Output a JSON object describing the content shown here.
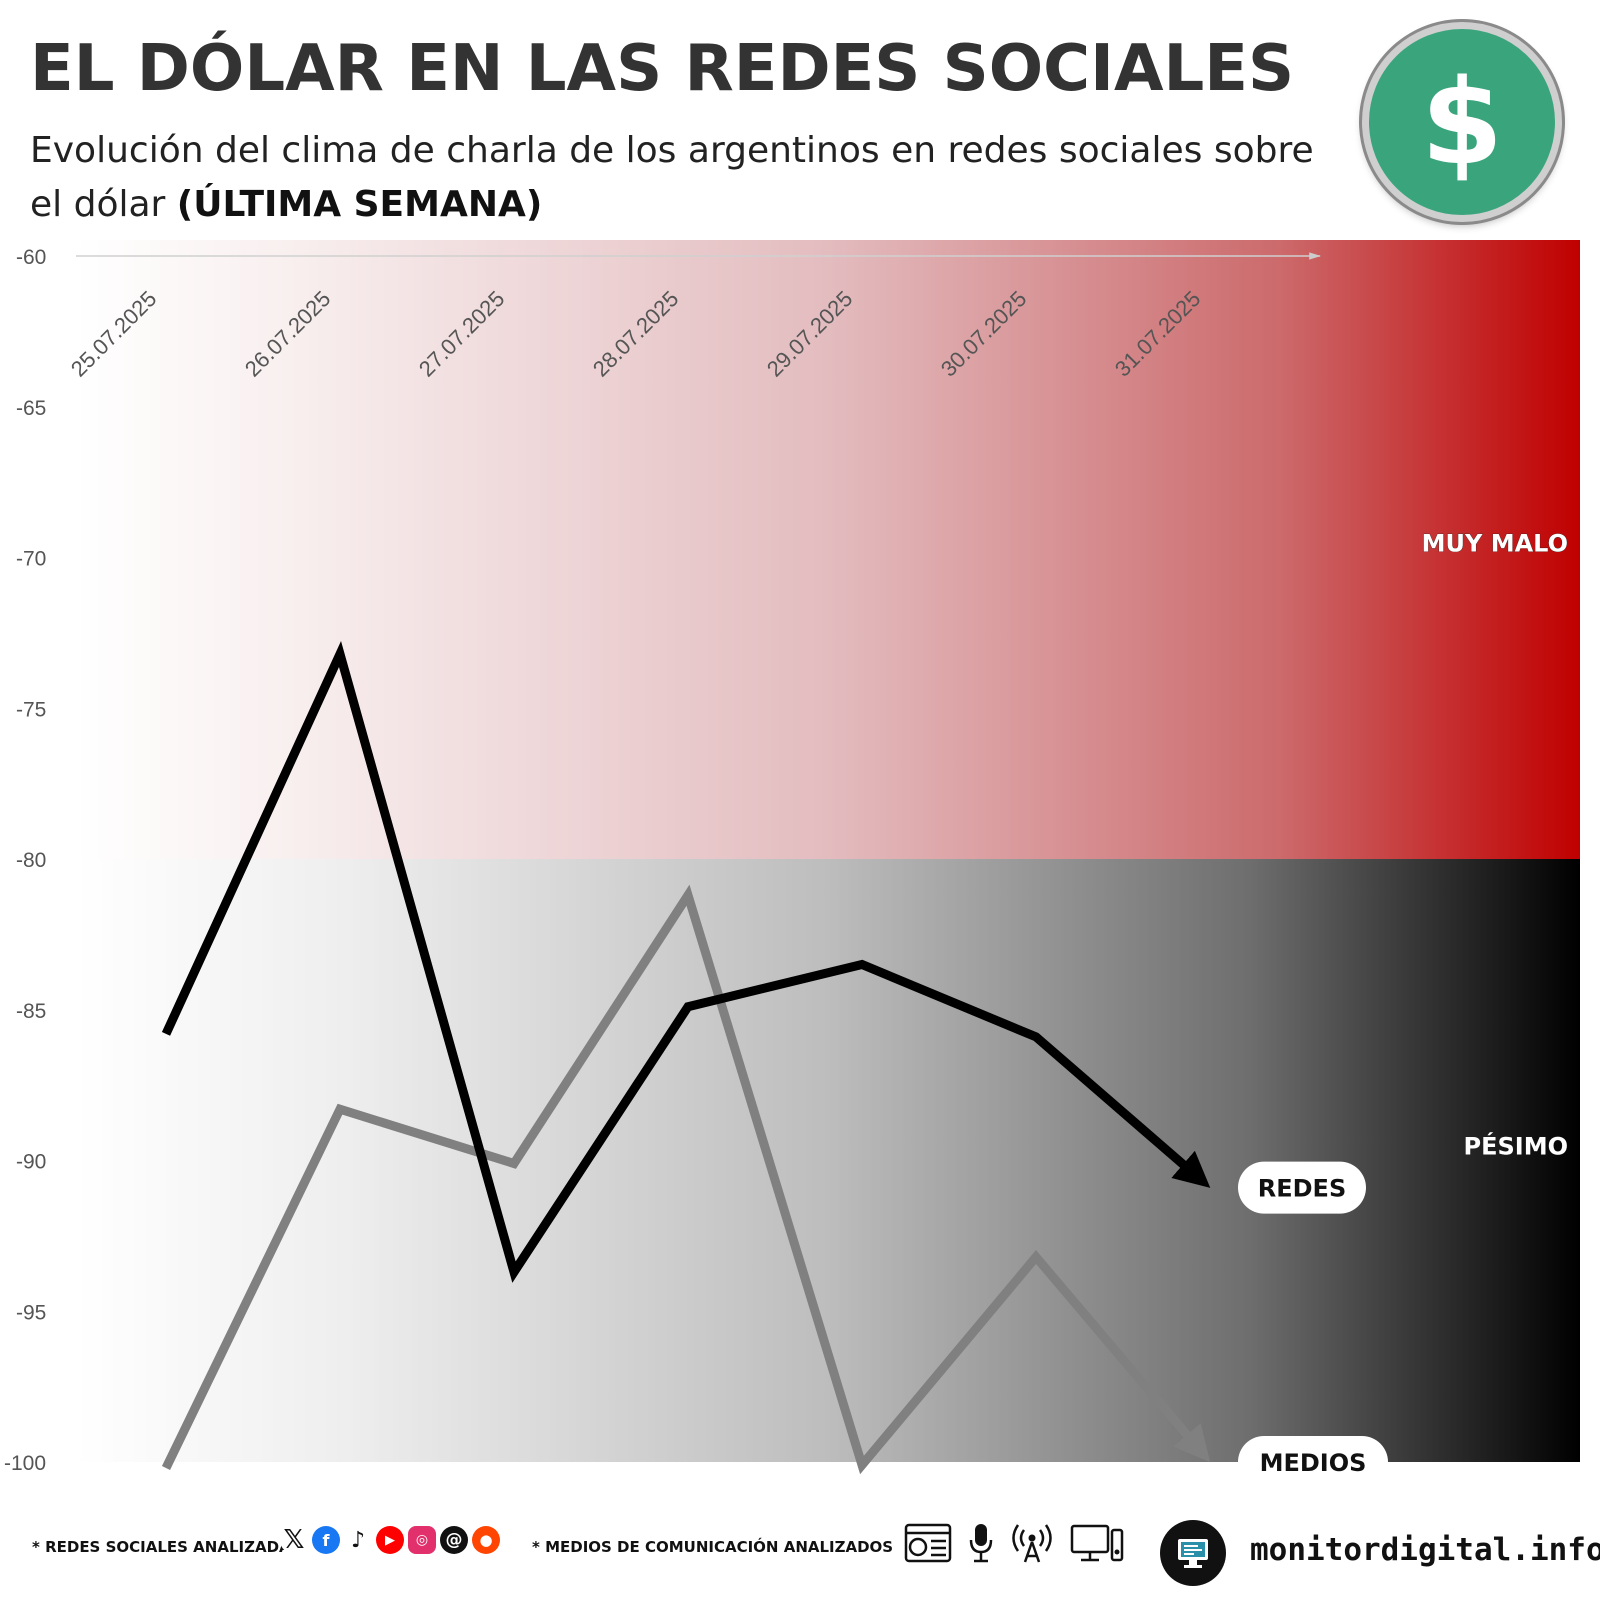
{
  "header": {
    "title": "EL DÓLAR EN LAS REDES SOCIALES",
    "subtitle_prefix": "Evolución del clima de charla de los argentinos en redes sociales sobre el dólar ",
    "subtitle_bold": "(ÚLTIMA SEMANA)",
    "logo_symbol": "$"
  },
  "chart_data": {
    "type": "line",
    "title": "EL DÓLAR EN LAS REDES SOCIALES",
    "subtitle": "Evolución del clima de charla de los argentinos en redes sociales sobre el dólar (ÚLTIMA SEMANA)",
    "xlabel": "",
    "ylabel": "",
    "categories": [
      "25.07.2025",
      "26.07.2025",
      "27.07.2025",
      "28.07.2025",
      "29.07.2025",
      "30.07.2025",
      "31.07.2025"
    ],
    "ylim": [
      -100,
      -60
    ],
    "yticks": [
      -60,
      -65,
      -70,
      -75,
      -80,
      -85,
      -90,
      -95,
      -100
    ],
    "grid": false,
    "bands": [
      {
        "label": "MUY MALO",
        "from": -80,
        "to": -60,
        "color": "#c00000"
      },
      {
        "label": "PÉSIMO",
        "from": -100,
        "to": -80,
        "color": "#000000"
      }
    ],
    "series": [
      {
        "name": "REDES",
        "values": [
          -85.8,
          -73.2,
          -93.7,
          -84.9,
          -83.5,
          -85.9,
          -90.9
        ],
        "color": "#000000"
      },
      {
        "name": "MEDIOS",
        "values": [
          -100.2,
          -88.3,
          -90.1,
          -81.2,
          -100.1,
          -93.2,
          -100.0
        ],
        "color": "#808080"
      }
    ]
  },
  "footer": {
    "social_label": "* REDES SOCIALES ANALIZADAS",
    "media_label": "* MEDIOS DE COMUNICACIÓN ANALIZADOS",
    "social_icons": [
      "x-icon",
      "facebook-icon",
      "tiktok-icon",
      "youtube-icon",
      "instagram-icon",
      "threads-icon",
      "reddit-icon"
    ],
    "media_icons": [
      "web-news-icon",
      "microphone-icon",
      "broadcast-antenna-icon",
      "tv-monitor-icon"
    ],
    "brand": "monitordigital.info"
  }
}
